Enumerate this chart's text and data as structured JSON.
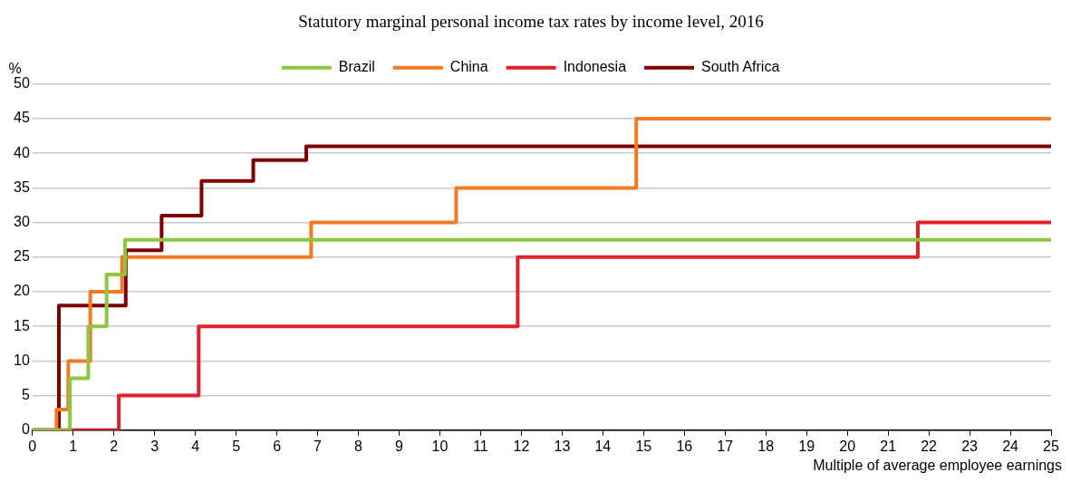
{
  "chart_data": {
    "type": "step",
    "title": "Statutory marginal personal income tax rates by income level, 2016",
    "xlabel": "Multiple of average employee earnings",
    "ylabel": "%",
    "xlim": [
      0,
      25
    ],
    "xticks": [
      0,
      1,
      2,
      3,
      4,
      5,
      6,
      7,
      8,
      9,
      10,
      11,
      12,
      13,
      14,
      15,
      16,
      17,
      18,
      19,
      20,
      21,
      22,
      23,
      24,
      25
    ],
    "ylim": [
      0,
      50
    ],
    "yticks": [
      0,
      5,
      10,
      15,
      20,
      25,
      30,
      35,
      40,
      45,
      50
    ],
    "grid": "y",
    "legend": "top",
    "marker": "none",
    "line_style": "solid",
    "series": [
      {
        "name": "Brazil",
        "color": "#8dc63f",
        "x": [
          0,
          0.92,
          1.37,
          1.82,
          2.27,
          25
        ],
        "values": [
          0,
          7.5,
          15,
          22.5,
          27.5,
          27.5
        ]
      },
      {
        "name": "China",
        "color": "#f47920",
        "x": [
          0,
          0.59,
          0.88,
          1.42,
          2.2,
          6.84,
          10.4,
          14.82,
          25
        ],
        "values": [
          0,
          3,
          10,
          20,
          25,
          30,
          35,
          45,
          45
        ]
      },
      {
        "name": "Indonesia",
        "color": "#e0202a",
        "x": [
          0,
          2.12,
          4.08,
          11.91,
          21.73,
          25
        ],
        "values": [
          0,
          5,
          15,
          25,
          30,
          30
        ]
      },
      {
        "name": "South Africa",
        "color": "#800000",
        "x": [
          0,
          0.65,
          2.29,
          3.17,
          4.15,
          5.42,
          6.72,
          25
        ],
        "values": [
          0,
          18,
          26,
          31,
          36,
          39,
          41,
          41
        ]
      }
    ]
  }
}
